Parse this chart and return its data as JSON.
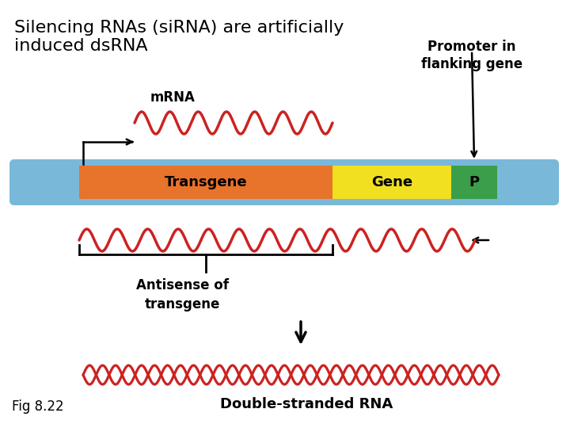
{
  "title_line1": "Silencing RNAs (siRNA) are artificially",
  "title_line2": "induced dsRNA",
  "title_fontsize": 16,
  "fig_bg": "#ffffff",
  "chromosome_color": "#7ab8d9",
  "transgene_color": "#e8732a",
  "gene_color": "#f0e020",
  "promoter_color": "#3a9e4a",
  "wave_color": "#cc2222",
  "label_transgene": "Transgene",
  "label_gene": "Gene",
  "label_promoter": "P",
  "label_mrna": "mRNA",
  "label_antisense": "Antisense of\ntransgene",
  "label_dsrna": "Double-stranded RNA",
  "label_promoter_flanking": "Promoter in\nflanking gene",
  "fig_label": "Fig 8.22"
}
